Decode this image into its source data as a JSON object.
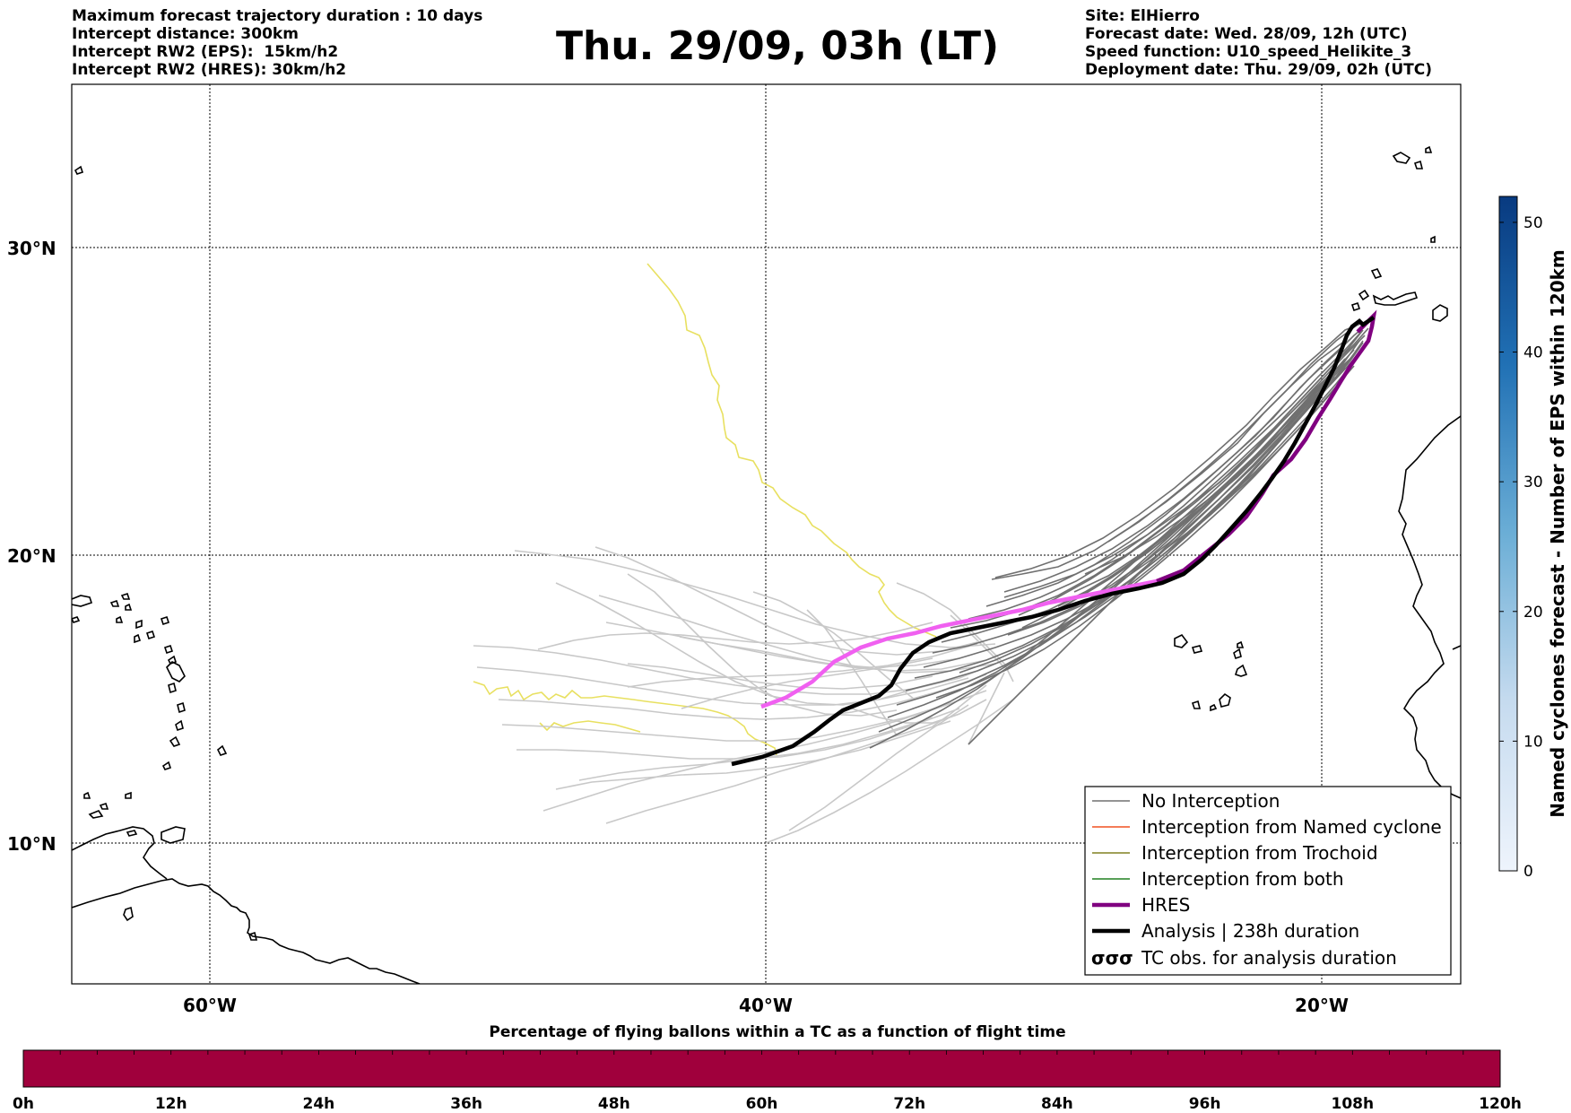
{
  "header": {
    "left_lines": [
      "Maximum forecast trajectory duration : 10 days",
      "Intercept distance: 300km",
      "Intercept RW2 (EPS):  15km/h2",
      "Intercept RW2 (HRES): 30km/h2"
    ],
    "title": "Thu. 29/09, 03h (LT)",
    "right_lines": [
      "Site: ElHierro",
      "Forecast date: Wed. 28/09, 12h (UTC)",
      "Speed function: U10_speed_Helikite_3",
      "Deployment date: Thu. 29/09, 02h (UTC)"
    ]
  },
  "map": {
    "lon_range": [
      -65,
      -15
    ],
    "lat_range": [
      5.3,
      34.6
    ],
    "lat_labels": [
      "30°N",
      "20°N",
      "10°N"
    ],
    "lon_labels": [
      "60°W",
      "40°W",
      "20°W"
    ],
    "colors": {
      "no_interception": "#707070",
      "light_tracks": "#c8c8c8",
      "named_cyclone": "#f05020",
      "trochoid": "#808020",
      "both": "#208020",
      "hres": "#800080",
      "hres_pink": "#f060f0",
      "analysis": "#000000",
      "yellow": "#e8e060"
    }
  },
  "legend": {
    "items": [
      {
        "label": "No Interception",
        "color": "#707070",
        "style": "thin"
      },
      {
        "label": "Interception from Named cyclone",
        "color": "#f05020",
        "style": "thin"
      },
      {
        "label": "Interception from Trochoid",
        "color": "#808020",
        "style": "thin"
      },
      {
        "label": "Interception from both",
        "color": "#208020",
        "style": "thin"
      },
      {
        "label": "HRES",
        "color": "#800080",
        "style": "thick"
      },
      {
        "label": "Analysis | 238h duration",
        "color": "#000000",
        "style": "thick"
      },
      {
        "label": "TC obs. for analysis duration",
        "color": "#000000",
        "style": "symbol"
      }
    ],
    "tc_symbol": "σσσ"
  },
  "colorbar_right": {
    "label": "Named cyclones forecast - Number of EPS within 120km",
    "ticks": [
      "0",
      "10",
      "20",
      "30",
      "40",
      "50"
    ],
    "range": [
      0,
      52
    ],
    "color_low": "#e8f0fa",
    "color_high": "#083a80"
  },
  "colorbar_bottom": {
    "title": "Percentage of flying ballons within a TC as a function of flight time",
    "ticks": [
      "0h",
      "12h",
      "24h",
      "36h",
      "48h",
      "60h",
      "72h",
      "84h",
      "96h",
      "108h",
      "120h"
    ],
    "fill_color": "#a0003c"
  }
}
